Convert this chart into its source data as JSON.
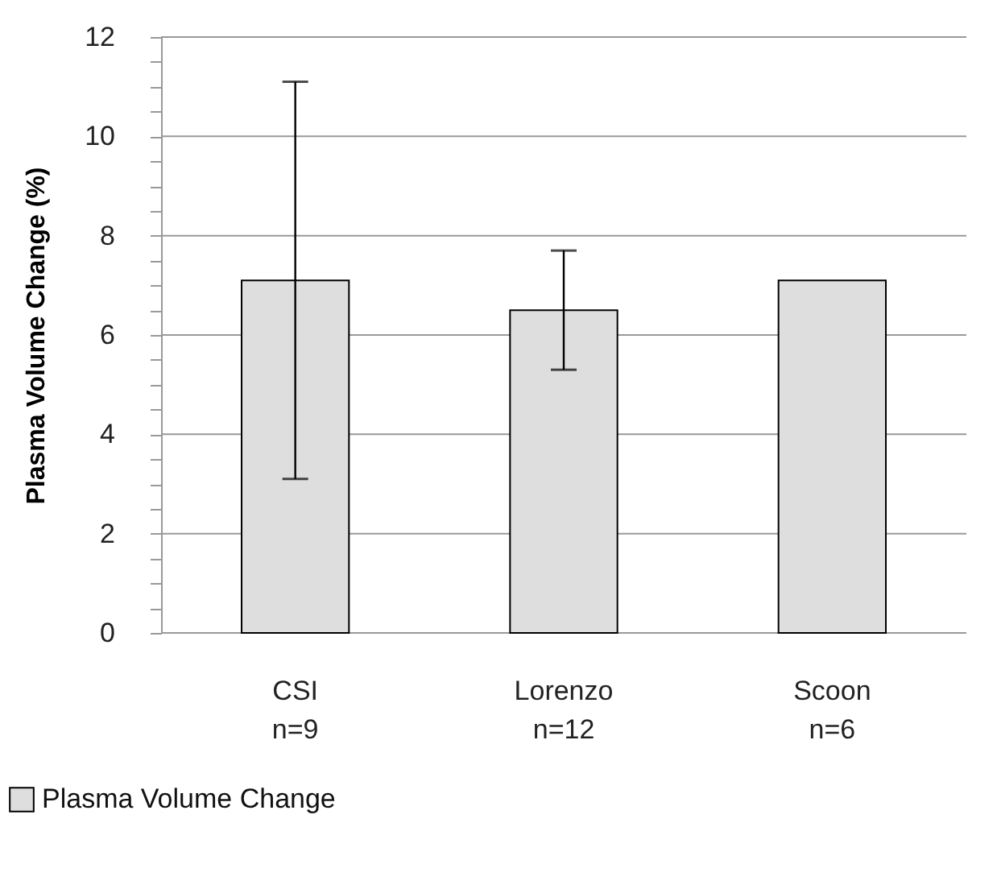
{
  "chart_data": {
    "type": "bar",
    "ylabel": "Plasma Volume Change (%)",
    "categories": [
      "CSI\nn=9",
      "Lorenzo\nn=12",
      "Scoon\nn=6"
    ],
    "series": [
      {
        "name": "Plasma Volume Change",
        "color": "#dedede",
        "values": [
          7.1,
          6.5,
          7.1
        ],
        "errors": [
          4,
          1.2,
          null
        ]
      }
    ],
    "ylim": [
      0,
      12
    ],
    "yticks": [
      0,
      {
        "value": 0.5,
        "label": null
      },
      {
        "value": 1,
        "label": null
      },
      {
        "value": 1.5,
        "label": null
      },
      2,
      {
        "value": 2.5,
        "label": null
      },
      {
        "value": 3,
        "label": null
      },
      {
        "value": 3.5,
        "label": null
      },
      4,
      {
        "value": 4.5,
        "label": null
      },
      {
        "value": 5,
        "label": null
      },
      {
        "value": 5.5,
        "label": null
      },
      6,
      {
        "value": 6.5,
        "label": null
      },
      {
        "value": 7,
        "label": null
      },
      {
        "value": 7.5,
        "label": null
      },
      8,
      {
        "value": 8.5,
        "label": null
      },
      {
        "value": 9,
        "label": null
      },
      {
        "value": 9.5,
        "label": null
      },
      10,
      {
        "value": 10.5,
        "label": null
      },
      {
        "value": 11,
        "label": null
      },
      {
        "value": 11.5,
        "label": null
      },
      12
    ],
    "grid": "y",
    "legend": "bottom left"
  }
}
